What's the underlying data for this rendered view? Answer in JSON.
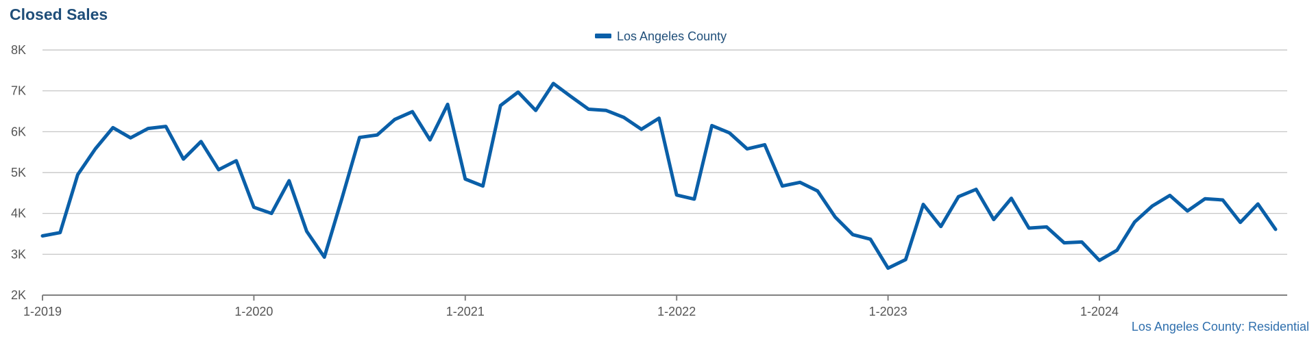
{
  "title": "Closed Sales",
  "footer": "Los Angeles County: Residential",
  "colors": {
    "series": "#0a5fa8",
    "title": "#1f4e79",
    "grid": "#bfbfbf",
    "axis": "#808080"
  },
  "chart_data": {
    "type": "line",
    "x_start": "1-2019",
    "x_end": "11-2024",
    "ylim": [
      2000,
      8000
    ],
    "y_ticks": [
      {
        "value": 2000,
        "label": "2K"
      },
      {
        "value": 3000,
        "label": "3K"
      },
      {
        "value": 4000,
        "label": "4K"
      },
      {
        "value": 5000,
        "label": "5K"
      },
      {
        "value": 6000,
        "label": "6K"
      },
      {
        "value": 7000,
        "label": "7K"
      },
      {
        "value": 8000,
        "label": "8K"
      }
    ],
    "x_ticks": [
      "1-2019",
      "1-2020",
      "1-2021",
      "1-2022",
      "1-2023",
      "1-2024"
    ],
    "grid": true,
    "legend_position": "top-center",
    "series": [
      {
        "name": "Los Angeles County",
        "values": [
          3450,
          3530,
          4950,
          5580,
          6100,
          5850,
          6080,
          6130,
          5330,
          5760,
          5070,
          5290,
          4150,
          4000,
          4800,
          3560,
          2930,
          4370,
          5860,
          5920,
          6300,
          6490,
          5800,
          6670,
          4840,
          4670,
          6640,
          6970,
          6520,
          7180,
          6860,
          6550,
          6520,
          6350,
          6060,
          6330,
          4450,
          4350,
          6150,
          5970,
          5580,
          5680,
          4670,
          4760,
          4550,
          3910,
          3480,
          3370,
          2660,
          2870,
          4220,
          3680,
          4410,
          4590,
          3850,
          4370,
          3640,
          3670,
          3280,
          3300,
          2850,
          3100,
          3790,
          4180,
          4440,
          4060,
          4360,
          4330,
          3780,
          4230,
          3610
        ]
      }
    ]
  }
}
